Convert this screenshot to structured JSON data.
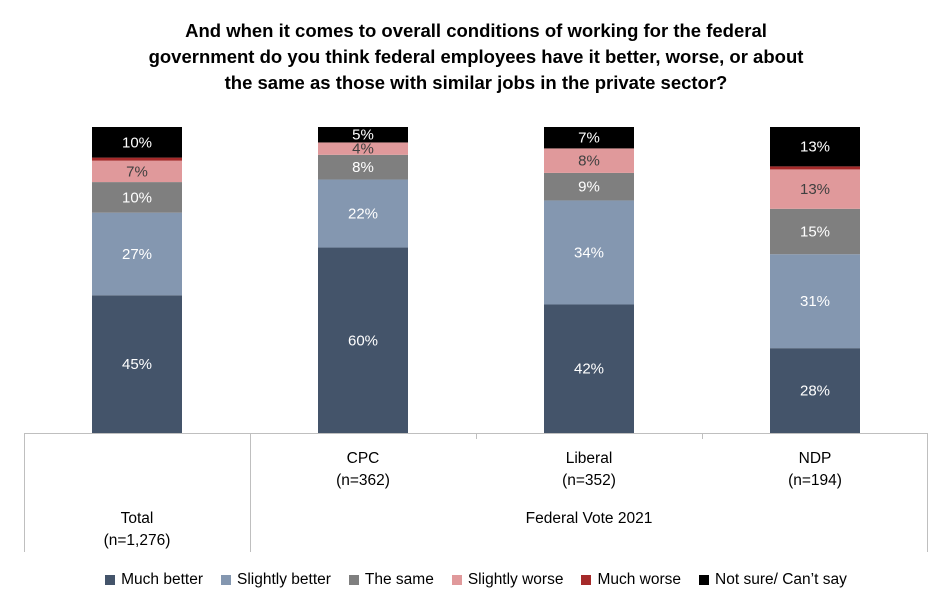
{
  "chart_data": {
    "type": "bar",
    "stacked": true,
    "title_lines": [
      "And when it comes to overall conditions of working for the federal",
      "government do you think federal employees have it better, worse, or about",
      "the same as those with similar jobs in the private sector?"
    ],
    "categories": [
      "Total",
      "CPC",
      "Liberal",
      "NDP"
    ],
    "category_labels": [
      [
        "Total",
        "(n=1,276)"
      ],
      [
        "CPC",
        "(n=362)"
      ],
      [
        "Liberal",
        "(n=352)"
      ],
      [
        "NDP",
        "(n=194)"
      ]
    ],
    "group_label": "Federal Vote 2021",
    "series": [
      {
        "name": "Much better",
        "color": "#44546A",
        "values": [
          45,
          60,
          42,
          28
        ],
        "labels": [
          "45%",
          "60%",
          "42%",
          "28%"
        ]
      },
      {
        "name": "Slightly better",
        "color": "#8497B0",
        "values": [
          27,
          22,
          34,
          31
        ],
        "labels": [
          "27%",
          "22%",
          "34%",
          "31%"
        ]
      },
      {
        "name": "The same",
        "color": "#7F7F7F",
        "values": [
          10,
          8,
          9,
          15
        ],
        "labels": [
          "10%",
          "8%",
          "9%",
          "15%"
        ]
      },
      {
        "name": "Slightly worse",
        "color": "#E0999B",
        "values": [
          7,
          4,
          8,
          13
        ],
        "labels": [
          "7%",
          "4%",
          "8%",
          "13%"
        ]
      },
      {
        "name": "Much worse",
        "color": "#A52A2A",
        "values": [
          1,
          0,
          0,
          1
        ],
        "labels": [
          "",
          "",
          "",
          ""
        ]
      },
      {
        "name": "Not sure/ Can’t say",
        "color": "#000000",
        "values": [
          10,
          5,
          7,
          13
        ],
        "labels": [
          "10%",
          "5%",
          "7%",
          "13%"
        ]
      }
    ],
    "ylim": [
      0,
      100
    ],
    "grid": false,
    "legend_position": "bottom"
  }
}
